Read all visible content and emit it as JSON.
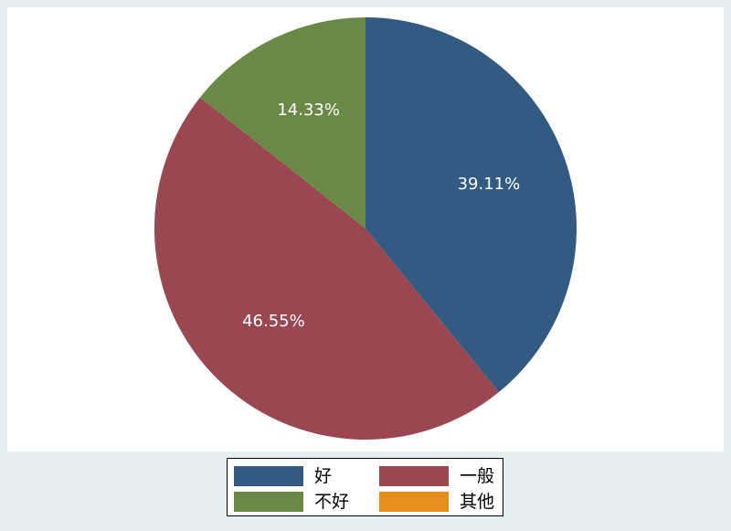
{
  "chart_data": {
    "type": "pie",
    "title": "",
    "start_angle_deg": 90,
    "direction": "clockwise",
    "labels_format": "percent",
    "slices": [
      {
        "label": "好",
        "percent": 39.11,
        "color": "#335a80",
        "label_text": "39.11%"
      },
      {
        "label": "一般",
        "percent": 46.55,
        "color": "#994750",
        "label_text": "46.55%"
      },
      {
        "label": "不好",
        "percent": 14.33,
        "color": "#6b8946",
        "label_text": "14.33%"
      },
      {
        "label": "其他",
        "percent": 0,
        "color": "#e58e1c",
        "label_text": ""
      }
    ],
    "legend": {
      "placement": "bottom",
      "columns": 2,
      "entries": [
        "好",
        "一般",
        "不好",
        "其他"
      ]
    }
  }
}
